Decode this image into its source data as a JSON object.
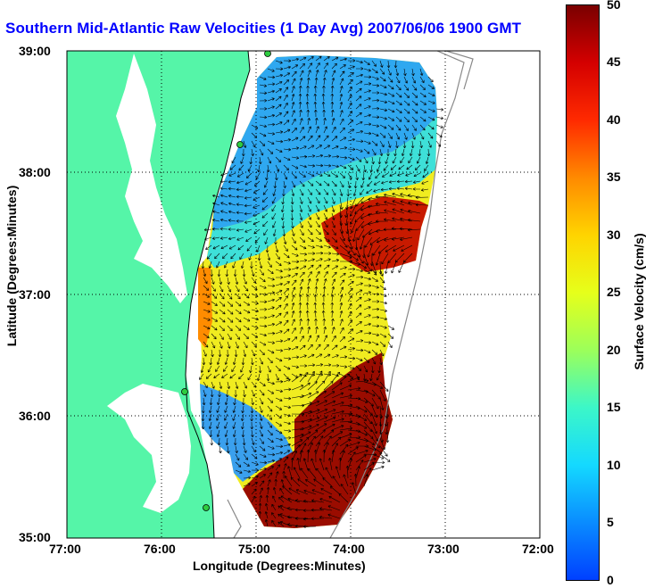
{
  "title": "Southern Mid-Atlantic Raw Velocities (1 Day Avg) 2007/06/06 1900 GMT",
  "axes": {
    "xlabel": "Longitude (Degrees:Minutes)",
    "ylabel": "Latitude (Degrees:Minutes)",
    "x_ticks": [
      "77:00",
      "76:00",
      "75:00",
      "74:00",
      "73:00",
      "72:00"
    ],
    "y_ticks": [
      "39:00",
      "38:00",
      "37:00",
      "36:00",
      "35:00"
    ]
  },
  "colorbar": {
    "label": "Surface Velocity (cm/s)",
    "ticks": [
      "0",
      "5",
      "10",
      "15",
      "20",
      "25",
      "30",
      "35",
      "40",
      "45",
      "50"
    ],
    "min": 0,
    "max": 50
  },
  "colors": {
    "land": "#55f5a8",
    "water": "#ffffff",
    "title": "#0000ff"
  }
}
